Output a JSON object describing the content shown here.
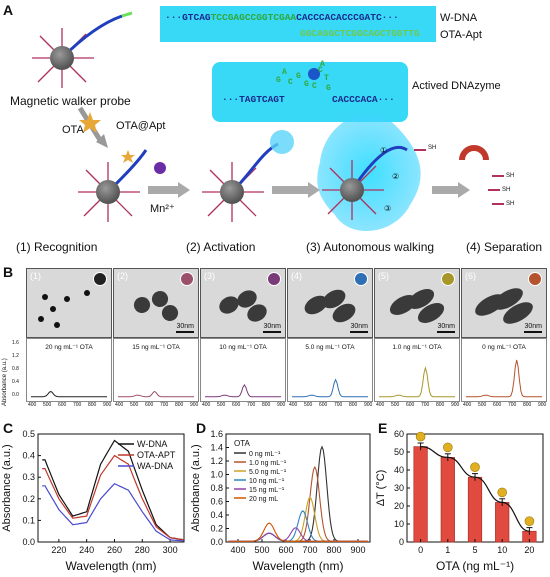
{
  "panelA": {
    "letter": "A",
    "wdna": {
      "seq_left": "···GTCAG",
      "seq_mid": "TCCGAGCCGGTCGAA",
      "seq_right": "CACCCACACCCGATC···",
      "label": "W-DNA"
    },
    "ota_apt": {
      "seq": "GGCAGGCTCGGCAGCTGGTTG",
      "label": "OTA-Apt"
    },
    "dnazyme": {
      "left": "···TAGTCAGT",
      "right": "CACCCACA···",
      "loop_letters": [
        "A",
        "G",
        "C",
        "G",
        "G",
        "C",
        "T",
        "C",
        "G",
        "A"
      ],
      "label": "Actived DNAzyme"
    },
    "walker_label": "Magnetic walker probe",
    "ota_label": "OTA",
    "ota_apt_label": "OTA@Apt",
    "mn_label": "Mn²⁺",
    "steps": [
      "(1) Recognition",
      "(2) Activation",
      "(3) Autonomous walking",
      "(4) Separation"
    ],
    "walk_steps": [
      "①",
      "②",
      "③"
    ],
    "sh": "SH",
    "hs": "HS"
  },
  "panelB": {
    "letter": "B",
    "items": [
      {
        "n": "(1)",
        "conc": "20 ng mL⁻¹ OTA",
        "scale": "",
        "peak": 0.14,
        "peak_x": 520,
        "color": "#222222"
      },
      {
        "n": "(2)",
        "conc": "15 ng mL⁻¹ OTA",
        "scale": "30nm",
        "peak": 0.2,
        "peak_x": 640,
        "color": "#9b4f6b"
      },
      {
        "n": "(3)",
        "conc": "10 ng mL⁻¹ OTA",
        "scale": "30nm",
        "peak": 0.45,
        "peak_x": 660,
        "color": "#7a3a7a"
      },
      {
        "n": "(4)",
        "conc": "5.0 ng mL⁻¹ OTA",
        "scale": "30nm",
        "peak": 0.65,
        "peak_x": 690,
        "color": "#2e6fb5"
      },
      {
        "n": "(5)",
        "conc": "1.0 ng mL⁻¹ OTA",
        "scale": "30nm",
        "peak": 1.1,
        "peak_x": 710,
        "color": "#a8962a"
      },
      {
        "n": "(6)",
        "conc": "0 ng mL⁻¹ OTA",
        "scale": "30nm",
        "peak": 1.4,
        "peak_x": 740,
        "color": "#b5532e"
      }
    ],
    "ylabel": "Absorbance (a.u.)",
    "yticks": [
      "1.6",
      "1.2",
      "0.8",
      "0.4",
      "0.0"
    ],
    "xticks": [
      "400",
      "500",
      "600",
      "700",
      "800",
      "900"
    ]
  },
  "chart_data": [
    {
      "panel": "C",
      "type": "line",
      "xlabel": "Wavelength (nm)",
      "ylabel": "Absorbance (a.u.)",
      "xlim": [
        205,
        310
      ],
      "ylim": [
        0.0,
        0.5
      ],
      "xticks": [
        "220",
        "240",
        "260",
        "280",
        "300"
      ],
      "yticks": [
        "0.0",
        "0.1",
        "0.2",
        "0.3",
        "0.4",
        "0.5"
      ],
      "legend": "top-right",
      "series": [
        {
          "name": "W-DNA",
          "color": "#111111",
          "x": [
            210,
            220,
            230,
            240,
            250,
            260,
            270,
            280,
            290,
            300,
            310
          ],
          "y": [
            0.38,
            0.22,
            0.12,
            0.14,
            0.36,
            0.47,
            0.42,
            0.24,
            0.08,
            0.02,
            0.01
          ]
        },
        {
          "name": "OTA-APT",
          "color": "#c0392b",
          "x": [
            210,
            220,
            230,
            240,
            250,
            260,
            270,
            280,
            290,
            300,
            310
          ],
          "y": [
            0.34,
            0.2,
            0.11,
            0.12,
            0.31,
            0.4,
            0.36,
            0.2,
            0.07,
            0.02,
            0.01
          ]
        },
        {
          "name": "WA-DNA",
          "color": "#4a4ad0",
          "x": [
            210,
            220,
            230,
            240,
            250,
            260,
            270,
            280,
            290,
            300,
            310
          ],
          "y": [
            0.26,
            0.15,
            0.08,
            0.09,
            0.2,
            0.27,
            0.24,
            0.14,
            0.05,
            0.01,
            0.005
          ]
        }
      ]
    },
    {
      "panel": "D",
      "type": "line",
      "title": "OTA",
      "xlabel": "Wavelength (nm)",
      "ylabel": "Absorbance (a.u.)",
      "xlim": [
        350,
        950
      ],
      "ylim": [
        0.0,
        1.6
      ],
      "xticks": [
        "400",
        "500",
        "600",
        "700",
        "800",
        "900"
      ],
      "yticks": [
        "0.0",
        "0.2",
        "0.4",
        "0.6",
        "0.8",
        "1.0",
        "1.2",
        "1.4",
        "1.6"
      ],
      "legend": "top-left",
      "series": [
        {
          "name": "0 ng mL⁻¹",
          "color": "#333333",
          "peak_x": 750,
          "peak_y": 1.4
        },
        {
          "name": "1.0 ng mL⁻¹",
          "color": "#b5532e",
          "peak_x": 720,
          "peak_y": 1.1
        },
        {
          "name": "5.0 ng mL⁻¹",
          "color": "#c9a227",
          "peak_x": 700,
          "peak_y": 0.65
        },
        {
          "name": "10 ng mL⁻¹",
          "color": "#2e86c1",
          "peak_x": 670,
          "peak_y": 0.45
        },
        {
          "name": "15 ng mL⁻¹",
          "color": "#8e44ad",
          "peak_x": 640,
          "peak_y": 0.2
        },
        {
          "name": "20 ng mL",
          "color": "#d35400",
          "peak_x": 530,
          "peak_y": 0.15
        }
      ]
    },
    {
      "panel": "E",
      "type": "bar",
      "xlabel": "OTA (ng mL⁻¹)",
      "ylabel": "ΔT (°C)",
      "categories": [
        "0",
        "1",
        "5",
        "10",
        "20"
      ],
      "values": [
        53,
        47,
        36,
        22,
        6
      ],
      "errors": [
        2,
        2,
        2,
        2,
        2
      ],
      "ylim": [
        0,
        60
      ],
      "yticks": [
        "0",
        "10",
        "20",
        "30",
        "40",
        "50",
        "60"
      ],
      "bar_color": "#e04a3f"
    }
  ]
}
